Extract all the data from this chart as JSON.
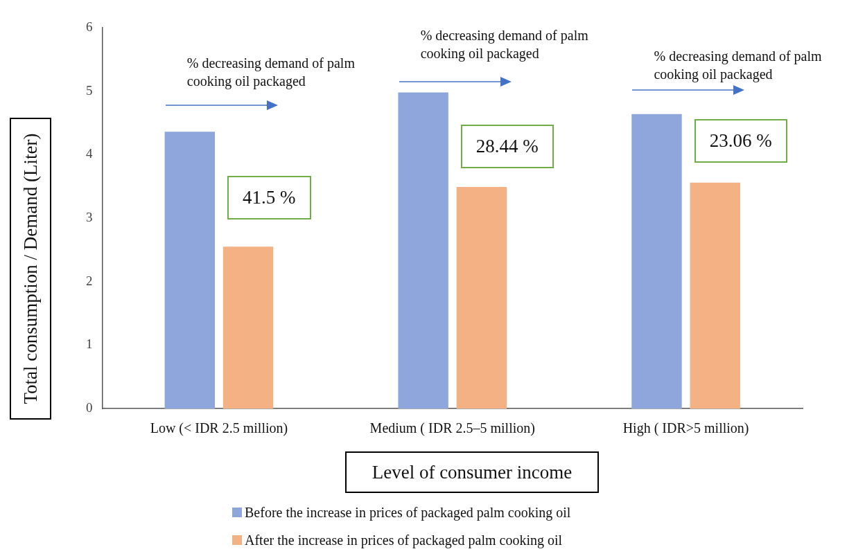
{
  "chart_data": {
    "type": "bar",
    "xlabel": "Level of consumer income",
    "ylabel": "Total consumption / Demand (Liter)",
    "categories": [
      "Low (< IDR 2.5 million)",
      "Medium ( IDR 2.5–5 million)",
      "High ( IDR>5 million)"
    ],
    "series": [
      {
        "name": "Before the increase in prices of packaged palm cooking oil",
        "color": "#8fa6dc",
        "values": [
          4.36,
          4.98,
          4.64
        ]
      },
      {
        "name": "After the increase in prices of packaged palm cooking oil",
        "color": "#f4b183",
        "values": [
          2.55,
          3.49,
          3.56
        ]
      }
    ],
    "ylim": [
      0,
      6
    ],
    "yticks": [
      0,
      1,
      2,
      3,
      4,
      5,
      6
    ],
    "grid": false,
    "legend": "bottom",
    "annotations": [
      "% decreasing demand of palm cooking oil packaged",
      "% decreasing demand of palm cooking oil packaged",
      "% decreasing demand of palm cooking oil packaged",
      "41.5 %",
      "28.44 %",
      "23.06 %"
    ]
  }
}
